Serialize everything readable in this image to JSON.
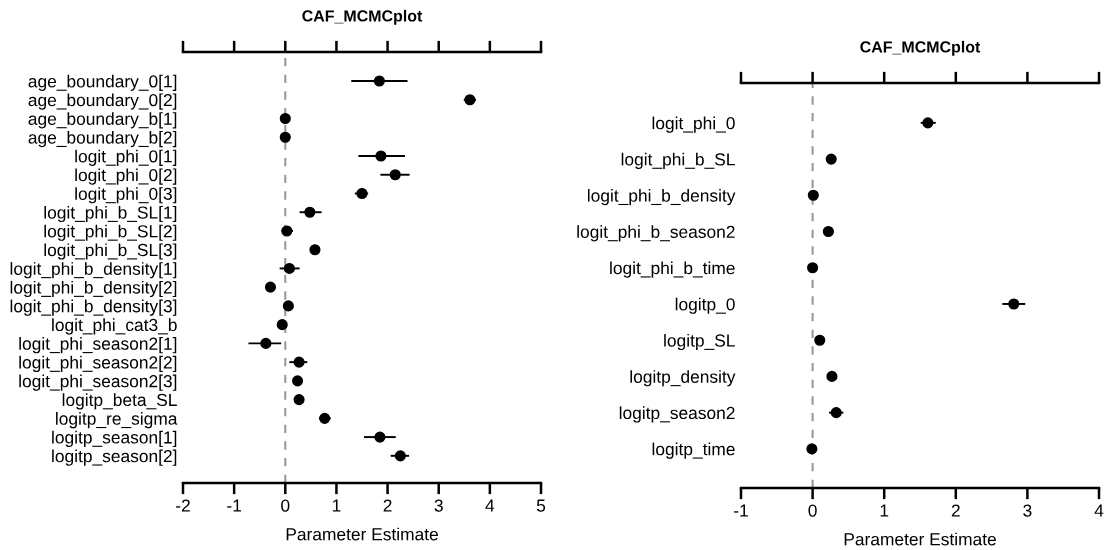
{
  "chart_data": [
    {
      "type": "scatter",
      "title": "CAF_MCMCplot",
      "xlabel": "Parameter Estimate",
      "orientation": "horizontal",
      "marker": "circle",
      "grid": false,
      "legend": false,
      "categories": [
        "age_boundary_0[1]",
        "age_boundary_0[2]",
        "age_boundary_b[1]",
        "age_boundary_b[2]",
        "logit_phi_0[1]",
        "logit_phi_0[2]",
        "logit_phi_0[3]",
        "logit_phi_b_SL[1]",
        "logit_phi_b_SL[2]",
        "logit_phi_b_SL[3]",
        "logit_phi_b_density[1]",
        "logit_phi_b_density[2]",
        "logit_phi_b_density[3]",
        "logit_phi_cat3_b",
        "logit_phi_season2[1]",
        "logit_phi_season2[2]",
        "logit_phi_season2[3]",
        "logitp_beta_SL",
        "logitp_re_sigma",
        "logitp_season[1]",
        "logitp_season[2]"
      ],
      "xlim": [
        -2,
        5
      ],
      "xticks": [
        -2,
        -1,
        0,
        1,
        2,
        3,
        4,
        5
      ],
      "ref_lines": [
        {
          "axis": "x",
          "value": 0,
          "color": "#999999",
          "line_style": "dashed"
        }
      ],
      "series": [
        {
          "color": "#000000",
          "values": [
            1.84,
            3.61,
            0,
            0,
            1.87,
            2.15,
            1.5,
            0.48,
            0.03,
            0.58,
            0.08,
            -0.29,
            0.06,
            -0.06,
            -0.38,
            0.27,
            0.24,
            0.27,
            0.77,
            1.85,
            2.25
          ],
          "errors": [
            [
              1.29,
              2.39
            ],
            [
              3.49,
              3.73
            ],
            null,
            null,
            [
              1.43,
              2.34
            ],
            [
              1.86,
              2.43
            ],
            [
              1.36,
              1.62
            ],
            [
              0.28,
              0.71
            ],
            [
              -0.07,
              0.15
            ],
            null,
            [
              -0.11,
              0.28
            ],
            [
              -0.38,
              -0.2
            ],
            null,
            null,
            [
              -0.72,
              -0.08
            ],
            [
              0.08,
              0.43
            ],
            null,
            null,
            [
              0.66,
              0.89
            ],
            [
              1.54,
              2.16
            ],
            [
              2.06,
              2.42
            ]
          ]
        }
      ]
    },
    {
      "type": "scatter",
      "title": "CAF_MCMCplot",
      "xlabel": "Parameter Estimate",
      "orientation": "horizontal",
      "marker": "circle",
      "grid": false,
      "legend": false,
      "categories": [
        "logit_phi_0",
        "logit_phi_b_SL",
        "logit_phi_b_density",
        "logit_phi_b_season2",
        "logit_phi_b_time",
        "logitp_0",
        "logitp_SL",
        "logitp_density",
        "logitp_season2",
        "logitp_time"
      ],
      "xlim": [
        -1,
        4
      ],
      "xticks": [
        -1,
        0,
        1,
        2,
        3,
        4
      ],
      "ref_lines": [
        {
          "axis": "x",
          "value": 0,
          "color": "#999999",
          "line_style": "dashed"
        }
      ],
      "series": [
        {
          "color": "#000000",
          "values": [
            1.61,
            0.26,
            0.01,
            0.22,
            0,
            2.81,
            0.1,
            0.27,
            0.33,
            -0.01
          ],
          "errors": [
            [
              1.51,
              1.72
            ],
            null,
            null,
            [
              0.16,
              0.29
            ],
            null,
            [
              2.65,
              2.97
            ],
            null,
            [
              0.2,
              0.33
            ],
            [
              0.23,
              0.43
            ],
            null
          ]
        }
      ]
    }
  ]
}
